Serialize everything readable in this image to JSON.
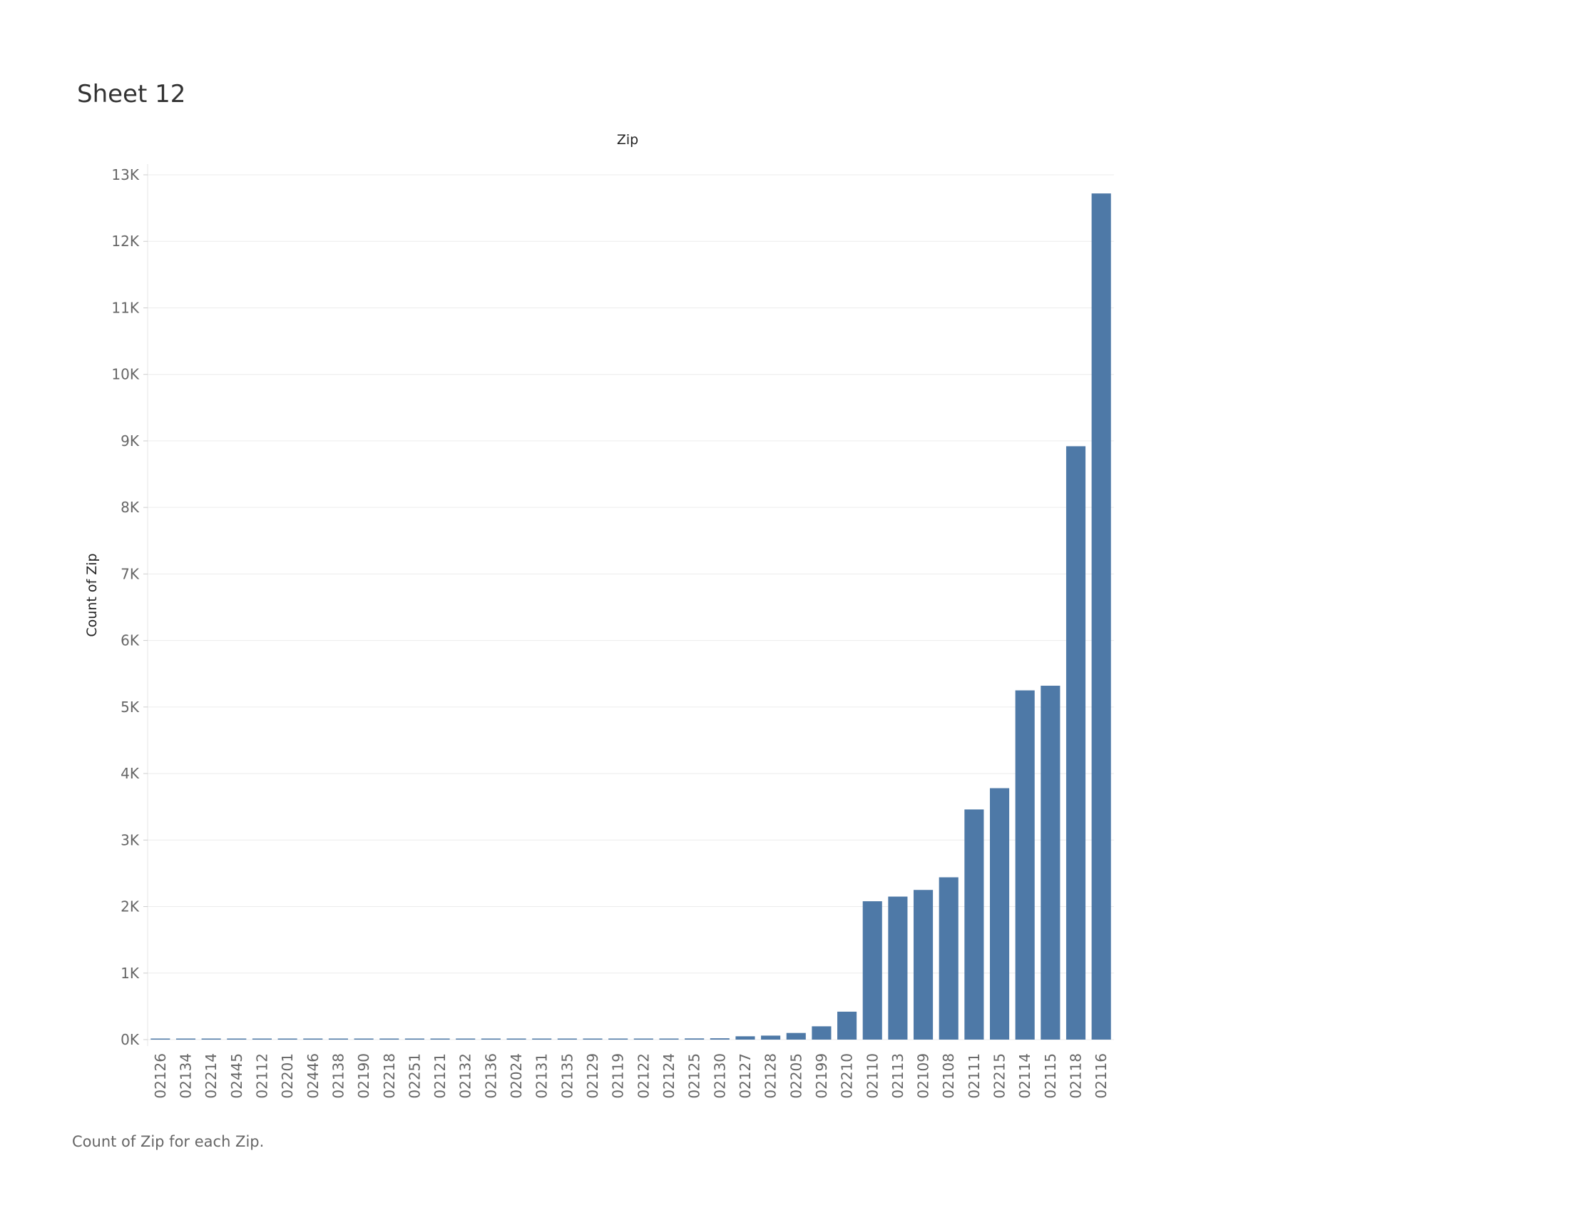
{
  "sheet": {
    "title": "Sheet 12",
    "caption": "Count of Zip for each Zip."
  },
  "chart_data": {
    "type": "bar",
    "title": "",
    "column_header": "Zip",
    "xlabel": "",
    "ylabel": "Count of Zip",
    "bar_color": "#4e79a7",
    "grid": true,
    "ylim": [
      -150,
      13000
    ],
    "yticks": [
      "0K",
      "1K",
      "2K",
      "3K",
      "4K",
      "5K",
      "6K",
      "7K",
      "8K",
      "9K",
      "10K",
      "11K",
      "12K",
      "13K"
    ],
    "ytick_values": [
      0,
      1000,
      2000,
      3000,
      4000,
      5000,
      6000,
      7000,
      8000,
      9000,
      10000,
      11000,
      12000,
      13000
    ],
    "categories": [
      "02126",
      "02134",
      "02214",
      "02445",
      "02112",
      "02201",
      "02446",
      "02138",
      "02190",
      "02218",
      "02251",
      "02121",
      "02132",
      "02136",
      "02024",
      "02131",
      "02135",
      "02129",
      "02119",
      "02122",
      "02124",
      "02125",
      "02130",
      "02127",
      "02128",
      "02205",
      "02199",
      "02210",
      "02110",
      "02113",
      "02109",
      "02108",
      "02111",
      "02215",
      "02114",
      "02115",
      "02118",
      "02116"
    ],
    "values": [
      1,
      1,
      1,
      1,
      1,
      1,
      1,
      1,
      1,
      1,
      1,
      1,
      1,
      2,
      2,
      3,
      3,
      10,
      12,
      14,
      16,
      18,
      20,
      50,
      60,
      100,
      200,
      420,
      2080,
      2150,
      2250,
      2440,
      3460,
      3780,
      5250,
      5320,
      8920,
      12720
    ]
  }
}
